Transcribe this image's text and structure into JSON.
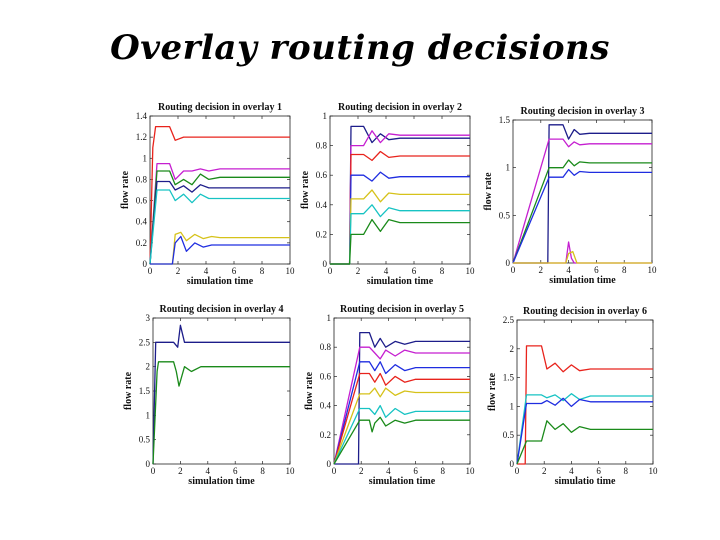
{
  "slide": {
    "title": "Overlay routing decisions"
  },
  "chart_data": [
    {
      "type": "line",
      "title": "Routing decision in overlay 1",
      "xlabel": "simulation time",
      "ylabel": "flow rate",
      "xlim": [
        0,
        10
      ],
      "ylim": [
        0,
        1.4
      ],
      "xticks": [
        "0",
        "2",
        "4",
        "6",
        "8",
        "10"
      ],
      "xtickvals": [
        0,
        2,
        4,
        6,
        8,
        10
      ],
      "yticks": [
        "0",
        "0.2",
        "0.4",
        "0.6",
        "0.8",
        "1",
        "1.2",
        "1.4"
      ],
      "ytickvals": [
        0,
        0.2,
        0.4,
        0.6,
        0.8,
        1,
        1.2,
        1.4
      ],
      "series": [
        {
          "name": "red",
          "color": "#e8231c",
          "x": [
            0,
            0.2,
            0.4,
            1.4,
            1.8,
            2.4,
            3,
            3.6,
            4.2,
            5,
            10
          ],
          "y": [
            0,
            1.1,
            1.3,
            1.3,
            1.17,
            1.2,
            1.2,
            1.2,
            1.2,
            1.2,
            1.2
          ]
        },
        {
          "name": "magenta",
          "color": "#c51fd0",
          "x": [
            0,
            0.5,
            1.4,
            1.8,
            2.4,
            3,
            3.6,
            4.2,
            5,
            10
          ],
          "y": [
            0,
            0.95,
            0.95,
            0.8,
            0.88,
            0.88,
            0.9,
            0.88,
            0.9,
            0.9
          ]
        },
        {
          "name": "green",
          "color": "#1a8a1a",
          "x": [
            0,
            0.5,
            1.4,
            1.8,
            2.4,
            3,
            3.6,
            4.2,
            5,
            10
          ],
          "y": [
            0,
            0.88,
            0.88,
            0.75,
            0.8,
            0.75,
            0.85,
            0.8,
            0.82,
            0.82
          ]
        },
        {
          "name": "navy",
          "color": "#1d1d8a",
          "x": [
            0,
            0.5,
            1.4,
            1.8,
            2.4,
            3,
            3.6,
            4.2,
            5,
            10
          ],
          "y": [
            0,
            0.78,
            0.78,
            0.7,
            0.74,
            0.68,
            0.75,
            0.72,
            0.72,
            0.72
          ]
        },
        {
          "name": "cyan",
          "color": "#17c3c3",
          "x": [
            0,
            0.5,
            1.4,
            1.8,
            2.4,
            3,
            3.6,
            4.2,
            5,
            10
          ],
          "y": [
            0,
            0.7,
            0.7,
            0.6,
            0.66,
            0.58,
            0.66,
            0.62,
            0.62,
            0.62
          ]
        },
        {
          "name": "yellow",
          "color": "#d6c21a",
          "x": [
            0,
            1.6,
            1.8,
            2.2,
            2.6,
            3.2,
            3.8,
            4.4,
            5,
            10
          ],
          "y": [
            0,
            0,
            0.28,
            0.3,
            0.22,
            0.28,
            0.24,
            0.26,
            0.25,
            0.25
          ]
        },
        {
          "name": "blue",
          "color": "#1f2de0",
          "x": [
            0,
            1.6,
            1.8,
            2.2,
            2.6,
            3.2,
            3.8,
            4.4,
            5,
            10
          ],
          "y": [
            0,
            0,
            0.2,
            0.26,
            0.12,
            0.2,
            0.16,
            0.18,
            0.18,
            0.18
          ]
        }
      ]
    },
    {
      "type": "line",
      "title": "Routing decision in overlay 2",
      "xlabel": "simulation time",
      "ylabel": "flow rate",
      "xlim": [
        0,
        10
      ],
      "ylim": [
        0,
        1
      ],
      "xticks": [
        "0",
        "2",
        "4",
        "6",
        "8",
        "10"
      ],
      "xtickvals": [
        0,
        2,
        4,
        6,
        8,
        10
      ],
      "yticks": [
        "0",
        "0.2",
        "0.4",
        "0.6",
        "0.8",
        "1"
      ],
      "ytickvals": [
        0,
        0.2,
        0.4,
        0.6,
        0.8,
        1
      ],
      "series": [
        {
          "name": "navy",
          "color": "#1d1d8a",
          "x": [
            0,
            1.4,
            1.5,
            2.4,
            3,
            3.6,
            4.2,
            5,
            10
          ],
          "y": [
            0,
            0,
            0.93,
            0.93,
            0.82,
            0.88,
            0.84,
            0.85,
            0.85
          ]
        },
        {
          "name": "magenta",
          "color": "#c51fd0",
          "x": [
            0,
            1.4,
            1.5,
            2.4,
            3,
            3.6,
            4.2,
            5,
            10
          ],
          "y": [
            0,
            0,
            0.8,
            0.8,
            0.9,
            0.82,
            0.88,
            0.87,
            0.87
          ]
        },
        {
          "name": "red",
          "color": "#e8231c",
          "x": [
            0,
            1.4,
            1.5,
            2.4,
            3,
            3.6,
            4.2,
            5,
            10
          ],
          "y": [
            0,
            0,
            0.74,
            0.74,
            0.7,
            0.76,
            0.72,
            0.73,
            0.73
          ]
        },
        {
          "name": "blue",
          "color": "#1f2de0",
          "x": [
            0,
            1.4,
            1.5,
            2.4,
            3,
            3.6,
            4.2,
            5,
            10
          ],
          "y": [
            0,
            0,
            0.6,
            0.6,
            0.56,
            0.62,
            0.58,
            0.59,
            0.59
          ]
        },
        {
          "name": "yellow",
          "color": "#d6c21a",
          "x": [
            0,
            1.4,
            1.5,
            2.4,
            3,
            3.6,
            4.2,
            5,
            10
          ],
          "y": [
            0,
            0,
            0.44,
            0.44,
            0.5,
            0.42,
            0.48,
            0.47,
            0.47
          ]
        },
        {
          "name": "cyan",
          "color": "#17c3c3",
          "x": [
            0,
            1.4,
            1.5,
            2.4,
            3,
            3.6,
            4.2,
            5,
            10
          ],
          "y": [
            0,
            0,
            0.34,
            0.34,
            0.4,
            0.32,
            0.38,
            0.36,
            0.36
          ]
        },
        {
          "name": "green",
          "color": "#1a8a1a",
          "x": [
            0,
            1.4,
            1.5,
            2.4,
            3,
            3.6,
            4.2,
            5,
            10
          ],
          "y": [
            0,
            0,
            0.2,
            0.2,
            0.3,
            0.22,
            0.3,
            0.28,
            0.28
          ]
        }
      ]
    },
    {
      "type": "line",
      "title": "Routing decision in overlay 3",
      "xlabel": "simulation time",
      "ylabel": "flow rate",
      "xlim": [
        0,
        10
      ],
      "ylim": [
        0,
        1.5
      ],
      "xticks": [
        "0",
        "2",
        "4",
        "6",
        "8",
        "10"
      ],
      "xtickvals": [
        0,
        2,
        4,
        6,
        8,
        10
      ],
      "yticks": [
        "0",
        "0.5",
        "1",
        "1.5"
      ],
      "ytickvals": [
        0,
        0.5,
        1,
        1.5
      ],
      "series": [
        {
          "name": "navy",
          "color": "#1d1d8a",
          "x": [
            0,
            2.5,
            2.6,
            3.6,
            4,
            4.4,
            4.8,
            5.5,
            10
          ],
          "y": [
            0,
            0,
            1.45,
            1.45,
            1.3,
            1.4,
            1.35,
            1.36,
            1.36
          ]
        },
        {
          "name": "magenta",
          "color": "#c51fd0",
          "x": [
            0,
            2.6,
            3.6,
            4,
            4.4,
            4.8,
            5.5,
            10
          ],
          "y": [
            0,
            1.3,
            1.3,
            1.22,
            1.27,
            1.24,
            1.25,
            1.25
          ]
        },
        {
          "name": "green",
          "color": "#1a8a1a",
          "x": [
            0,
            2.6,
            3.6,
            4,
            4.4,
            4.8,
            5.5,
            10
          ],
          "y": [
            0,
            1.0,
            1.0,
            1.08,
            1.02,
            1.06,
            1.05,
            1.05
          ]
        },
        {
          "name": "blue",
          "color": "#1f2de0",
          "x": [
            0,
            2.6,
            3.6,
            4,
            4.4,
            4.8,
            5.5,
            10
          ],
          "y": [
            0,
            0.9,
            0.9,
            0.98,
            0.92,
            0.96,
            0.95,
            0.95
          ]
        },
        {
          "name": "magenta-spike",
          "color": "#c51fd0",
          "x": [
            0,
            3.8,
            4,
            4.2,
            4.4,
            10
          ],
          "y": [
            0,
            0,
            0.22,
            0.05,
            0,
            0
          ]
        },
        {
          "name": "yellow",
          "color": "#d6c21a",
          "x": [
            0,
            3.8,
            4,
            4.3,
            4.6,
            10
          ],
          "y": [
            0,
            0,
            0.1,
            0.12,
            0,
            0
          ]
        }
      ]
    },
    {
      "type": "line",
      "title": "Routing decision in overlay 4",
      "xlabel": "simulation time",
      "ylabel": "flow rate",
      "xlim": [
        0,
        10
      ],
      "ylim": [
        0,
        3
      ],
      "xticks": [
        "0",
        "2",
        "4",
        "6",
        "8",
        "10"
      ],
      "xtickvals": [
        0,
        2,
        4,
        6,
        8,
        10
      ],
      "yticks": [
        "0",
        "0.5",
        "1",
        "1.5",
        "2",
        "2.5",
        "3"
      ],
      "ytickvals": [
        0,
        0.5,
        1,
        1.5,
        2,
        2.5,
        3
      ],
      "series": [
        {
          "name": "navy",
          "color": "#1d1d8a",
          "x": [
            0,
            0.2,
            0.4,
            1.5,
            1.8,
            2,
            2.3,
            2.8,
            3.5,
            10
          ],
          "y": [
            0,
            2.5,
            2.5,
            2.5,
            2.4,
            2.85,
            2.5,
            2.5,
            2.5,
            2.5
          ]
        },
        {
          "name": "green",
          "color": "#1a8a1a",
          "x": [
            0,
            0.3,
            0.4,
            1.5,
            1.7,
            1.9,
            2.3,
            2.8,
            3.5,
            10
          ],
          "y": [
            0,
            1.9,
            2.1,
            2.1,
            1.9,
            1.6,
            2.0,
            1.9,
            2.0,
            2.0
          ]
        }
      ]
    },
    {
      "type": "line",
      "title": "Routing decision in overlay 5",
      "xlabel": "simulation time",
      "ylabel": "flow rate",
      "xlim": [
        0,
        10
      ],
      "ylim": [
        0,
        1
      ],
      "xticks": [
        "0",
        "2",
        "4",
        "6",
        "8",
        "10"
      ],
      "xtickvals": [
        0,
        2,
        4,
        6,
        8,
        10
      ],
      "yticks": [
        "0",
        "0.2",
        "0.4",
        "0.6",
        "0.8",
        "1"
      ],
      "ytickvals": [
        0,
        0.2,
        0.4,
        0.6,
        0.8,
        1
      ],
      "series": [
        {
          "name": "navy",
          "color": "#1d1d8a",
          "x": [
            0,
            1.8,
            1.9,
            2.6,
            3,
            3.4,
            3.8,
            4.5,
            5.2,
            6,
            10
          ],
          "y": [
            0,
            0,
            0.9,
            0.9,
            0.8,
            0.86,
            0.8,
            0.84,
            0.82,
            0.84,
            0.84
          ]
        },
        {
          "name": "magenta",
          "color": "#c51fd0",
          "x": [
            0,
            1.9,
            2.6,
            3,
            3.4,
            3.8,
            4.5,
            5.2,
            6,
            10
          ],
          "y": [
            0,
            0.8,
            0.8,
            0.76,
            0.72,
            0.78,
            0.74,
            0.78,
            0.76,
            0.76
          ]
        },
        {
          "name": "blue",
          "color": "#1f2de0",
          "x": [
            0,
            1.9,
            2.6,
            3,
            3.4,
            3.8,
            4.5,
            5.2,
            6,
            10
          ],
          "y": [
            0,
            0.7,
            0.7,
            0.64,
            0.7,
            0.62,
            0.68,
            0.64,
            0.66,
            0.66
          ]
        },
        {
          "name": "red",
          "color": "#e8231c",
          "x": [
            0,
            1.9,
            2.6,
            3,
            3.4,
            3.8,
            4.5,
            5.2,
            6,
            10
          ],
          "y": [
            0,
            0.62,
            0.62,
            0.56,
            0.62,
            0.54,
            0.6,
            0.56,
            0.58,
            0.58
          ]
        },
        {
          "name": "yellow",
          "color": "#d6c21a",
          "x": [
            0,
            1.9,
            2.6,
            3,
            3.4,
            3.8,
            4.5,
            5.2,
            6,
            10
          ],
          "y": [
            0,
            0.48,
            0.48,
            0.52,
            0.46,
            0.52,
            0.47,
            0.5,
            0.49,
            0.49
          ]
        },
        {
          "name": "cyan",
          "color": "#17c3c3",
          "x": [
            0,
            1.9,
            2.6,
            3,
            3.4,
            3.8,
            4.5,
            5.2,
            6,
            10
          ],
          "y": [
            0,
            0.38,
            0.38,
            0.34,
            0.4,
            0.32,
            0.38,
            0.34,
            0.36,
            0.36
          ]
        },
        {
          "name": "green",
          "color": "#1a8a1a",
          "x": [
            0,
            1.9,
            2.6,
            2.8,
            3,
            3.4,
            3.8,
            4.5,
            5.2,
            6,
            10
          ],
          "y": [
            0,
            0.3,
            0.3,
            0.22,
            0.28,
            0.32,
            0.26,
            0.3,
            0.28,
            0.3,
            0.3
          ]
        }
      ]
    },
    {
      "type": "line",
      "title": "Routing decision in overlay 6",
      "xlabel": "simulatio time",
      "ylabel": "flow rate",
      "xlim": [
        0,
        10
      ],
      "ylim": [
        0,
        2.5
      ],
      "xticks": [
        "0",
        "2",
        "4",
        "6",
        "8",
        "10"
      ],
      "xtickvals": [
        0,
        2,
        4,
        6,
        8,
        10
      ],
      "yticks": [
        "0",
        "0.5",
        "1",
        "1.5",
        "2",
        "2.5"
      ],
      "ytickvals": [
        0,
        0.5,
        1,
        1.5,
        2,
        2.5
      ],
      "series": [
        {
          "name": "red",
          "color": "#e8231c",
          "x": [
            0,
            0.6,
            0.7,
            1.8,
            2.2,
            2.8,
            3.4,
            4,
            4.6,
            5.4,
            10
          ],
          "y": [
            0,
            0,
            2.05,
            2.05,
            1.65,
            1.75,
            1.6,
            1.72,
            1.62,
            1.65,
            1.65
          ]
        },
        {
          "name": "cyan",
          "color": "#17c3c3",
          "x": [
            0,
            0.7,
            1.8,
            2.2,
            2.8,
            3.4,
            4,
            4.6,
            5.4,
            10
          ],
          "y": [
            0,
            1.2,
            1.2,
            1.15,
            1.2,
            1.1,
            1.22,
            1.12,
            1.18,
            1.18
          ]
        },
        {
          "name": "blue",
          "color": "#1f2de0",
          "x": [
            0,
            0.7,
            1.8,
            2.2,
            2.8,
            3.4,
            4,
            4.6,
            5.4,
            10
          ],
          "y": [
            0,
            1.05,
            1.05,
            1.1,
            1.02,
            1.14,
            1.0,
            1.12,
            1.08,
            1.08
          ]
        },
        {
          "name": "green",
          "color": "#1a8a1a",
          "x": [
            0,
            0.7,
            1.8,
            2.2,
            2.8,
            3.4,
            4,
            4.6,
            5.4,
            10
          ],
          "y": [
            0,
            0.4,
            0.4,
            0.75,
            0.6,
            0.7,
            0.55,
            0.65,
            0.6,
            0.6
          ]
        }
      ]
    }
  ]
}
